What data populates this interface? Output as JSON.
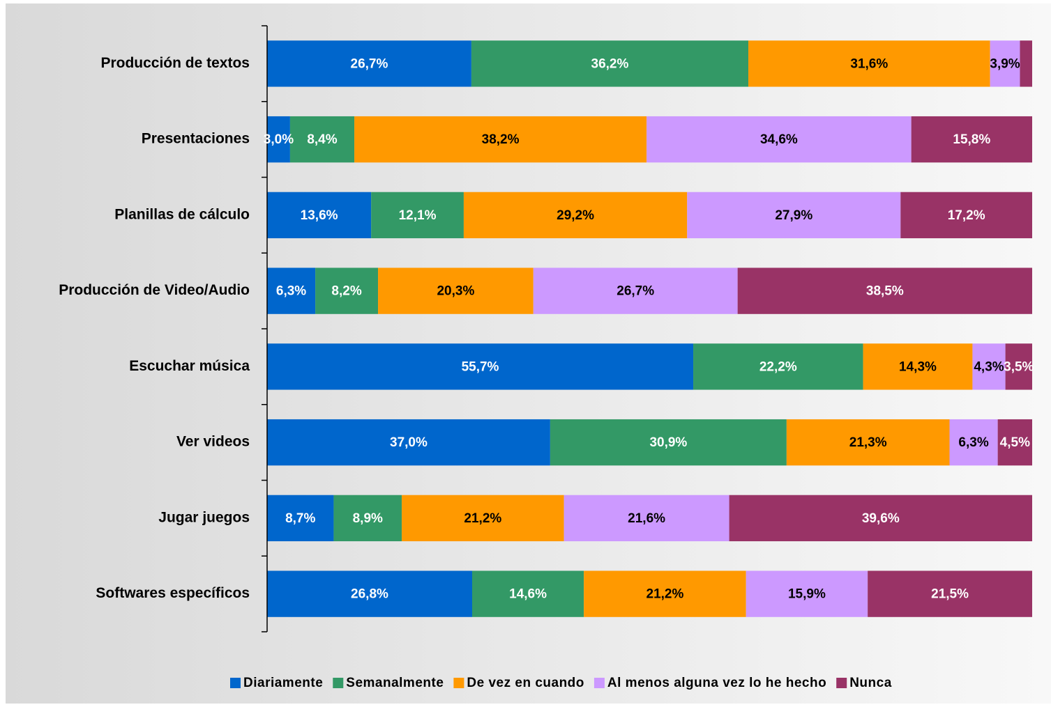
{
  "chart_data": {
    "type": "stacked-bar-horizontal",
    "categories": [
      "Producción de textos",
      "Presentaciones",
      "Planillas de cálculo",
      "Producción de Video/Audio",
      "Escuchar música",
      "Ver videos",
      "Jugar juegos",
      "Softwares específicos"
    ],
    "xlim": [
      0,
      100
    ],
    "series": [
      {
        "name": "Diariamente",
        "color": "#0066cc",
        "label_color": "#ffffff",
        "values": [
          26.7,
          3.0,
          13.6,
          6.3,
          55.7,
          37.0,
          8.7,
          26.8
        ],
        "value_labels": [
          "26,7%",
          "3,0%",
          "13,6%",
          "6,3%",
          "55,7%",
          "37,0%",
          "8,7%",
          "26,8%"
        ]
      },
      {
        "name": "Semanalmente",
        "color": "#339966",
        "label_color": "#ffffff",
        "values": [
          36.2,
          8.4,
          12.1,
          8.2,
          22.2,
          30.9,
          8.9,
          14.6
        ],
        "value_labels": [
          "36,2%",
          "8,4%",
          "12,1%",
          "8,2%",
          "22,2%",
          "30,9%",
          "8,9%",
          "14,6%"
        ]
      },
      {
        "name": "De vez en cuando",
        "color": "#ff9900",
        "label_color": "#000000",
        "values": [
          31.6,
          38.2,
          29.2,
          20.3,
          14.3,
          21.3,
          21.2,
          21.2
        ],
        "value_labels": [
          "31,6%",
          "38,2%",
          "29,2%",
          "20,3%",
          "14,3%",
          "21,3%",
          "21,2%",
          "21,2%"
        ]
      },
      {
        "name": "Al menos alguna vez lo he hecho",
        "color": "#cc99ff",
        "label_color": "#000000",
        "values": [
          3.9,
          34.6,
          27.9,
          26.7,
          4.3,
          6.3,
          21.6,
          15.9
        ],
        "value_labels": [
          "3,9%",
          "34,6%",
          "27,9%",
          "26,7%",
          "4,3%",
          "6,3%",
          "21,6%",
          "15,9%"
        ]
      },
      {
        "name": "Nunca",
        "color": "#993366",
        "label_color": "#ffffff",
        "values": [
          1.6,
          15.8,
          17.2,
          38.5,
          3.5,
          4.5,
          39.6,
          21.5
        ],
        "value_labels": [
          null,
          "15,8%",
          "17,2%",
          "38,5%",
          "3,5%",
          "4,5%",
          "39,6%",
          "21,5%"
        ]
      }
    ]
  }
}
